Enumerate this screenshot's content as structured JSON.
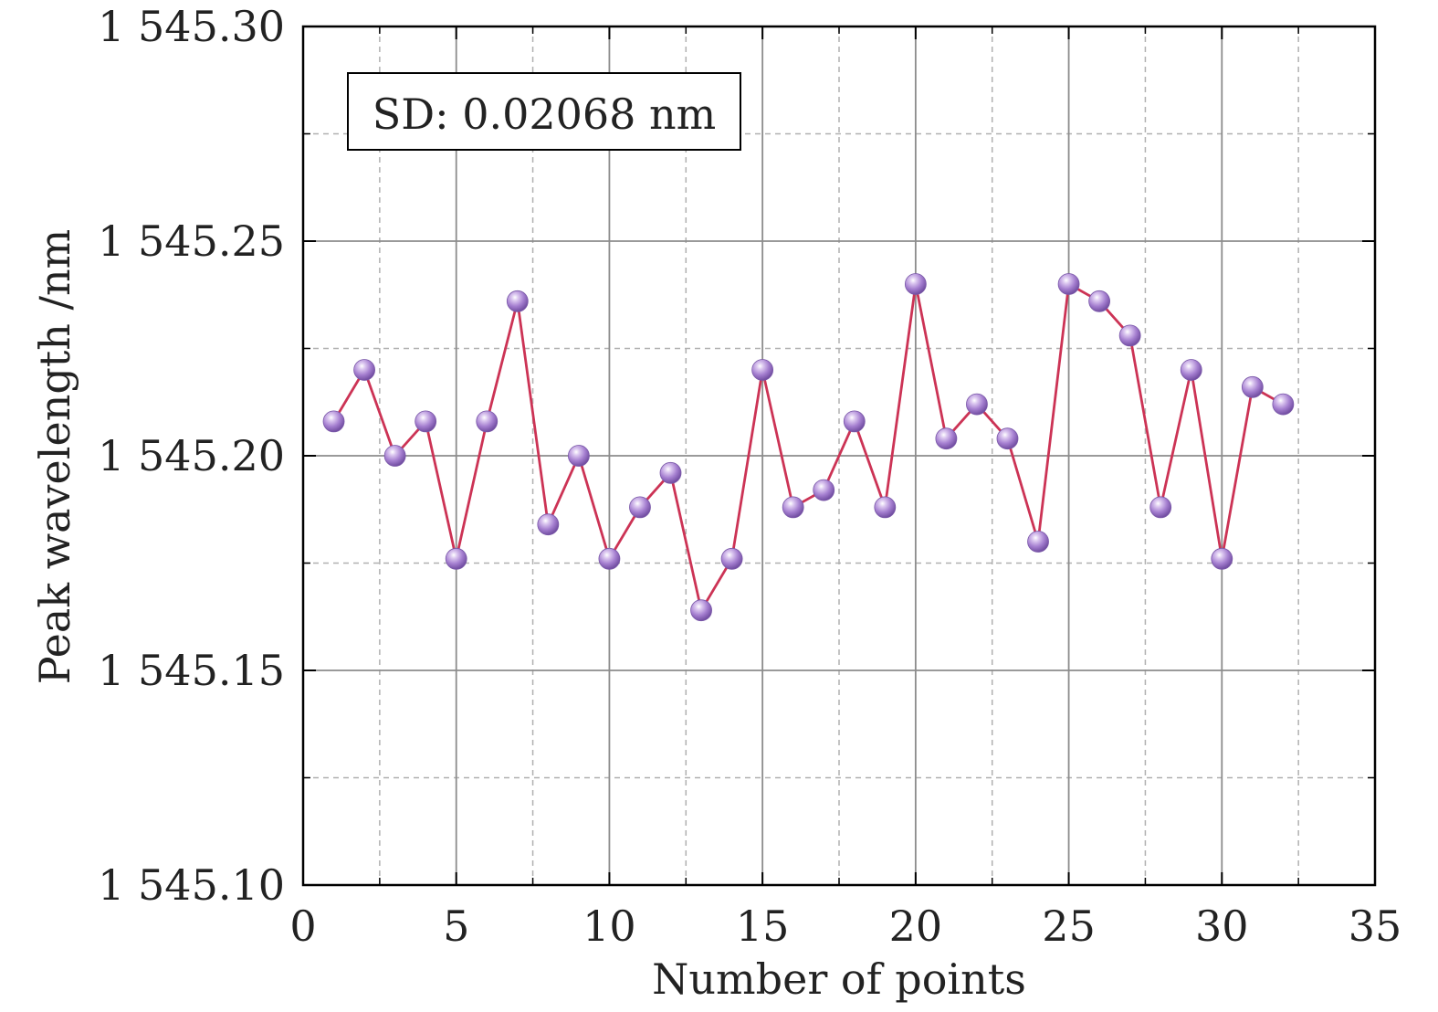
{
  "chart_data": {
    "type": "line",
    "xlabel": "Number of points",
    "ylabel": "Peak wavelength /nm",
    "xlim": [
      0,
      35
    ],
    "ylim": [
      1545.1,
      1545.3
    ],
    "x_ticks": [
      "0",
      "5",
      "10",
      "15",
      "20",
      "25",
      "30",
      "35"
    ],
    "y_ticks": [
      "1 545.10",
      "1 545.15",
      "1 545.20",
      "1 545.25",
      "1 545.30"
    ],
    "grid": "major solid, minor dashed",
    "annotation": "SD: 0.02068 nm",
    "line_color": "#cc3355",
    "marker_color": "#a57fd0",
    "series": [
      {
        "x": [
          1,
          2,
          3,
          4,
          5,
          6,
          7,
          8,
          9,
          10,
          11,
          12,
          13,
          14,
          15,
          16,
          17,
          18,
          19,
          20,
          21,
          22,
          23,
          24,
          25,
          26,
          27,
          28,
          29,
          30,
          31,
          32
        ],
        "values": [
          1545.208,
          1545.22,
          1545.2,
          1545.208,
          1545.176,
          1545.208,
          1545.236,
          1545.184,
          1545.2,
          1545.176,
          1545.188,
          1545.196,
          1545.164,
          1545.176,
          1545.22,
          1545.188,
          1545.192,
          1545.208,
          1545.188,
          1545.24,
          1545.204,
          1545.212,
          1545.204,
          1545.18,
          1545.24,
          1545.236,
          1545.228,
          1545.188,
          1545.22,
          1545.176,
          1545.216,
          1545.212
        ]
      }
    ]
  }
}
